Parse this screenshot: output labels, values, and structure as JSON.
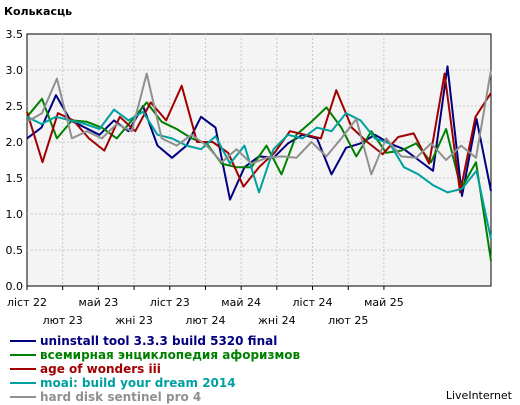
{
  "chart_data": {
    "type": "line",
    "ylabel": "Колькасць",
    "ylim": [
      0,
      3.5
    ],
    "yticks": [
      "0.0",
      "0.5",
      "1.0",
      "1.5",
      "2.0",
      "2.5",
      "3.0",
      "3.5"
    ],
    "grid": true,
    "x_index_range": [
      0,
      39
    ],
    "x_ticks_top_row": [
      {
        "label": "ліст 22",
        "index": 0
      },
      {
        "label": "май 23",
        "index": 6
      },
      {
        "label": "ліст 23",
        "index": 12
      },
      {
        "label": "май 24",
        "index": 18
      },
      {
        "label": "ліст 24",
        "index": 24
      },
      {
        "label": "май 25",
        "index": 30
      }
    ],
    "x_ticks_bottom_row": [
      {
        "label": "лют 23",
        "index": 3
      },
      {
        "label": "жні 23",
        "index": 9
      },
      {
        "label": "лют 24",
        "index": 15
      },
      {
        "label": "жні 24",
        "index": 21
      },
      {
        "label": "лют 25",
        "index": 27
      }
    ],
    "legend_position": "below",
    "series": [
      {
        "name": "uninstall tool 3.3.3 build 5320 final",
        "color": "#000080",
        "values": [
          2.05,
          2.2,
          2.65,
          2.3,
          2.2,
          2.1,
          2.3,
          2.15,
          2.5,
          1.95,
          1.78,
          1.95,
          2.35,
          2.2,
          1.2,
          1.65,
          1.8,
          1.78,
          1.98,
          2.1,
          2.05,
          1.55,
          1.92,
          1.98,
          2.1,
          1.98,
          1.9,
          1.75,
          1.6,
          3.05,
          1.25,
          2.32,
          1.32
        ]
      },
      {
        "name": "всемирная энциклопедия афоризмов",
        "color": "#008000",
        "values": [
          2.35,
          2.6,
          2.05,
          2.3,
          2.28,
          2.2,
          2.05,
          2.3,
          2.55,
          2.28,
          2.18,
          2.05,
          1.98,
          1.7,
          1.65,
          1.65,
          1.95,
          1.55,
          2.1,
          2.28,
          2.48,
          2.2,
          1.8,
          2.15,
          1.85,
          1.88,
          1.98,
          1.72,
          2.18,
          1.35,
          1.72,
          0.35
        ]
      },
      {
        "name": "age of wonders iii",
        "color": "#a00000",
        "values": [
          2.42,
          1.72,
          2.4,
          2.3,
          2.05,
          1.88,
          2.35,
          2.15,
          2.55,
          2.3,
          2.78,
          2.0,
          2.0,
          1.85,
          1.38,
          1.65,
          1.85,
          2.15,
          2.1,
          2.05,
          2.72,
          2.2,
          2.0,
          1.83,
          2.07,
          2.12,
          1.7,
          2.95,
          1.3,
          2.35,
          2.68
        ]
      },
      {
        "name": "moai: build your dream 2014",
        "color": "#00a0a0",
        "values": [
          2.35,
          2.25,
          2.35,
          2.3,
          2.25,
          2.18,
          2.45,
          2.3,
          2.42,
          2.1,
          2.05,
          1.95,
          1.9,
          2.08,
          1.7,
          1.95,
          1.3,
          1.9,
          2.1,
          2.05,
          2.2,
          2.15,
          2.4,
          2.3,
          2.05,
          1.98,
          1.65,
          1.55,
          1.4,
          1.3,
          1.35,
          1.6,
          0.65
        ]
      },
      {
        "name": "hard disk sentinel pro 4",
        "color": "#909090",
        "values": [
          2.28,
          2.4,
          2.88,
          2.05,
          2.15,
          2.05,
          2.25,
          2.15,
          2.95,
          2.05,
          1.95,
          2.1,
          1.95,
          1.72,
          1.9,
          1.7,
          1.78,
          1.8,
          1.78,
          2.0,
          1.8,
          2.05,
          2.32,
          1.55,
          2.05,
          1.8,
          1.78,
          1.98,
          1.75,
          1.95,
          1.78,
          3.0
        ]
      }
    ]
  },
  "footer": {
    "brand": "LiveInternet"
  }
}
